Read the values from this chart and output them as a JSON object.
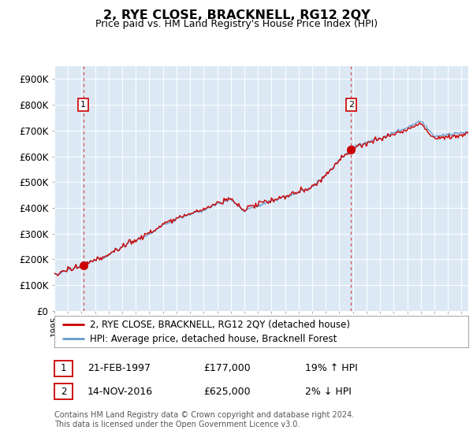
{
  "title": "2, RYE CLOSE, BRACKNELL, RG12 2QY",
  "subtitle": "Price paid vs. HM Land Registry's House Price Index (HPI)",
  "plot_bg_color": "#dce9f5",
  "hpi_color": "#6699cc",
  "price_color": "#cc0000",
  "dashed_color": "#cc3333",
  "sale1_year": 1997.13,
  "sale1_price": 177000,
  "sale2_year": 2016.87,
  "sale2_price": 625000,
  "ylim": [
    0,
    950000
  ],
  "xlim_start": 1995.0,
  "xlim_end": 2025.5,
  "legend_label1": "2, RYE CLOSE, BRACKNELL, RG12 2QY (detached house)",
  "legend_label2": "HPI: Average price, detached house, Bracknell Forest",
  "table_row1": [
    "1",
    "21-FEB-1997",
    "£177,000",
    "19% ↑ HPI"
  ],
  "table_row2": [
    "2",
    "14-NOV-2016",
    "£625,000",
    "2% ↓ HPI"
  ],
  "footer": "Contains HM Land Registry data © Crown copyright and database right 2024.\nThis data is licensed under the Open Government Licence v3.0.",
  "yticks": [
    0,
    100000,
    200000,
    300000,
    400000,
    500000,
    600000,
    700000,
    800000,
    900000
  ],
  "ytick_labels": [
    "£0",
    "£100K",
    "£200K",
    "£300K",
    "£400K",
    "£500K",
    "£600K",
    "£700K",
    "£800K",
    "£900K"
  ]
}
